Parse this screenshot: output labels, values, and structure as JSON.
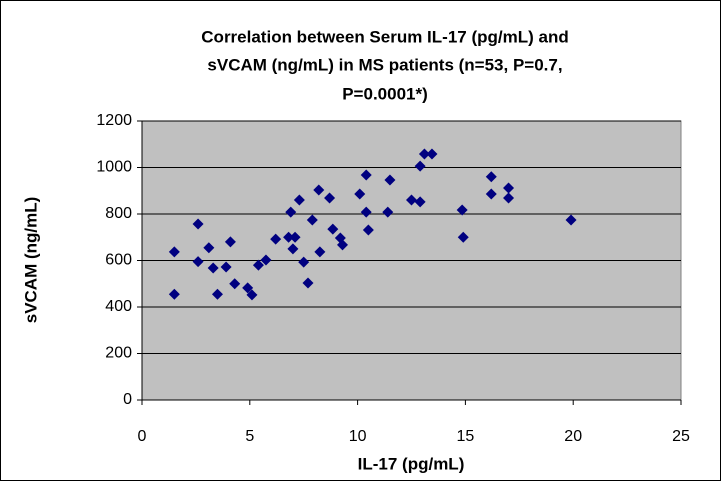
{
  "chart_data": {
    "type": "scatter",
    "title": [
      "Correlation between Serum IL-17 (pg/mL) and",
      "sVCAM (ng/mL) in MS patients (n=53, P=0.7,",
      "P=0.0001*)"
    ],
    "x_label": "IL-17 (pg/mL)",
    "y_label": "sVCAM (ng/mL)",
    "color": "#000080",
    "grid": true,
    "xlim": [
      0,
      25
    ],
    "xticks": [
      0,
      5,
      10,
      15,
      20,
      25
    ],
    "ylim": [
      0,
      1200
    ],
    "yticks": [
      0,
      200,
      400,
      600,
      800,
      1000,
      1200
    ],
    "x": [
      1.5,
      1.5,
      2.6,
      2.6,
      3.1,
      3.3,
      3.5,
      3.9,
      4.1,
      4.3,
      4.9,
      5.1,
      5.4,
      5.75,
      6.2,
      6.8,
      6.9,
      7.0,
      7.1,
      7.3,
      7.5,
      7.7,
      7.9,
      8.2,
      8.25,
      8.7,
      8.85,
      9.2,
      9.3,
      10.1,
      10.4,
      10.4,
      10.5,
      11.4,
      11.5,
      12.5,
      12.9,
      12.9,
      13.1,
      13.45,
      14.85,
      14.9,
      16.2,
      16.2,
      17.0,
      17.0,
      19.9
    ],
    "y": [
      637,
      455,
      757,
      595,
      655,
      568,
      455,
      572,
      680,
      500,
      482,
      452,
      580,
      602,
      692,
      700,
      808,
      650,
      700,
      860,
      593,
      503,
      774,
      903,
      637,
      869,
      735,
      697,
      667,
      886,
      968,
      808,
      731,
      808,
      946,
      860,
      852,
      1006,
      1058,
      1058,
      817,
      700,
      960,
      886,
      912,
      869,
      774
    ]
  }
}
